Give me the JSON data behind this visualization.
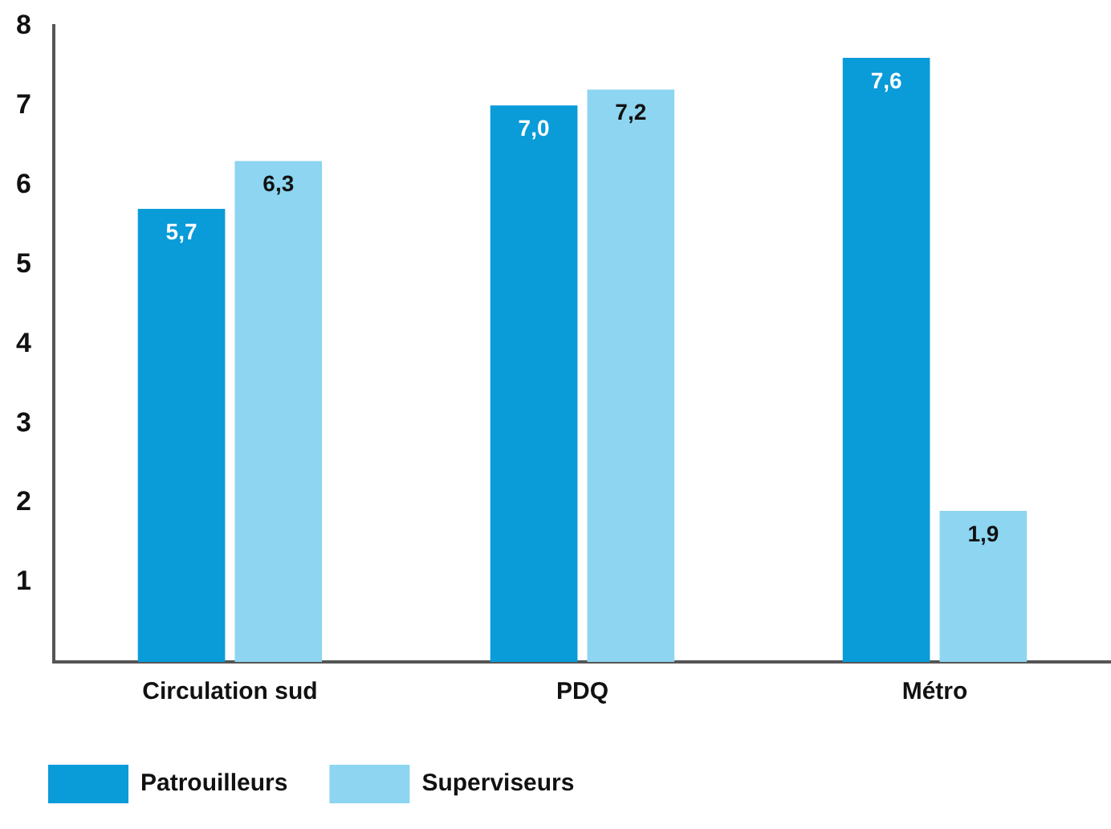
{
  "chart_data": {
    "type": "bar",
    "categories": [
      "Circulation sud",
      "PDQ",
      "Métro"
    ],
    "series": [
      {
        "name": "Patrouilleurs",
        "color": "#0a9bd9",
        "values": [
          5.7,
          7.0,
          7.6
        ],
        "value_labels": [
          "5,7",
          "7,0",
          "7,6"
        ]
      },
      {
        "name": "Superviseurs",
        "color": "#8dd5f0",
        "values": [
          6.3,
          7.2,
          1.9
        ],
        "value_labels": [
          "6,3",
          "7,2",
          "1,9"
        ]
      }
    ],
    "ylim": [
      0,
      8
    ],
    "yticks": [
      1,
      2,
      3,
      4,
      5,
      6,
      7,
      8
    ],
    "grid": false,
    "legend": "bottom left"
  }
}
